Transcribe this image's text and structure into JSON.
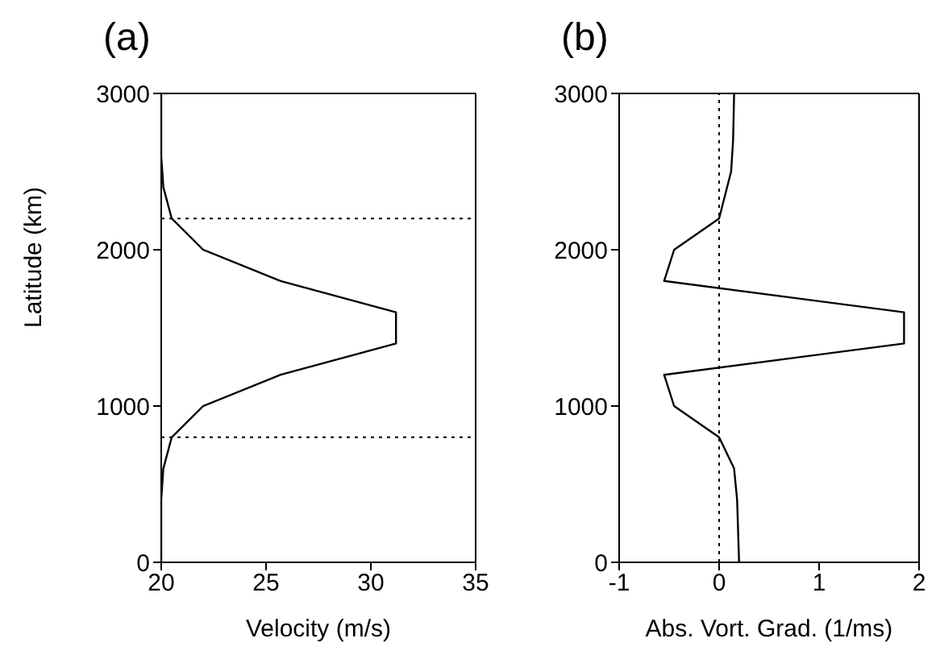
{
  "chart_data": [
    {
      "type": "line",
      "title": "(a)",
      "xlabel": "Velocity (m/s)",
      "ylabel": "Latitude (km)",
      "color": "#000000",
      "marker": "none",
      "line_style": "solid",
      "x": [
        20.0,
        20.0,
        20.1,
        20.5,
        22.0,
        25.7,
        31.2,
        31.2,
        25.7,
        22.0,
        20.5,
        20.1,
        20.0,
        20.0
      ],
      "values": [
        3000,
        2600,
        2400,
        2200,
        2000,
        1800,
        1600,
        1400,
        1200,
        1000,
        800,
        600,
        400,
        0
      ],
      "xlim": [
        20,
        35
      ],
      "xticks": [
        20,
        25,
        30,
        35
      ],
      "ylim": [
        0,
        3000
      ],
      "yticks": [
        0,
        1000,
        2000,
        3000
      ],
      "ref_lines": [
        {
          "axis": "y",
          "value": 2200,
          "line_style": "dotted",
          "color": "#000000"
        },
        {
          "axis": "y",
          "value": 800,
          "line_style": "dotted",
          "color": "#000000"
        }
      ]
    },
    {
      "type": "line",
      "title": "(b)",
      "xlabel": "Abs. Vort. Grad. (1/ms)",
      "color": "#000000",
      "marker": "none",
      "line_style": "solid",
      "x": [
        0.15,
        0.14,
        0.12,
        0.0,
        -0.45,
        -0.55,
        1.85,
        1.85,
        -0.55,
        -0.45,
        0.0,
        0.15,
        0.18,
        0.2
      ],
      "values": [
        3000,
        2700,
        2500,
        2200,
        2000,
        1800,
        1600,
        1400,
        1200,
        1000,
        800,
        600,
        400,
        0
      ],
      "xlim": [
        -1,
        2
      ],
      "xticks": [
        -1,
        0,
        1,
        2
      ],
      "ylim": [
        0,
        3000
      ],
      "yticks": [
        0,
        1000,
        2000,
        3000
      ],
      "ref_lines": [
        {
          "axis": "x",
          "value": 0,
          "line_style": "dotted",
          "color": "#000000"
        }
      ]
    }
  ]
}
